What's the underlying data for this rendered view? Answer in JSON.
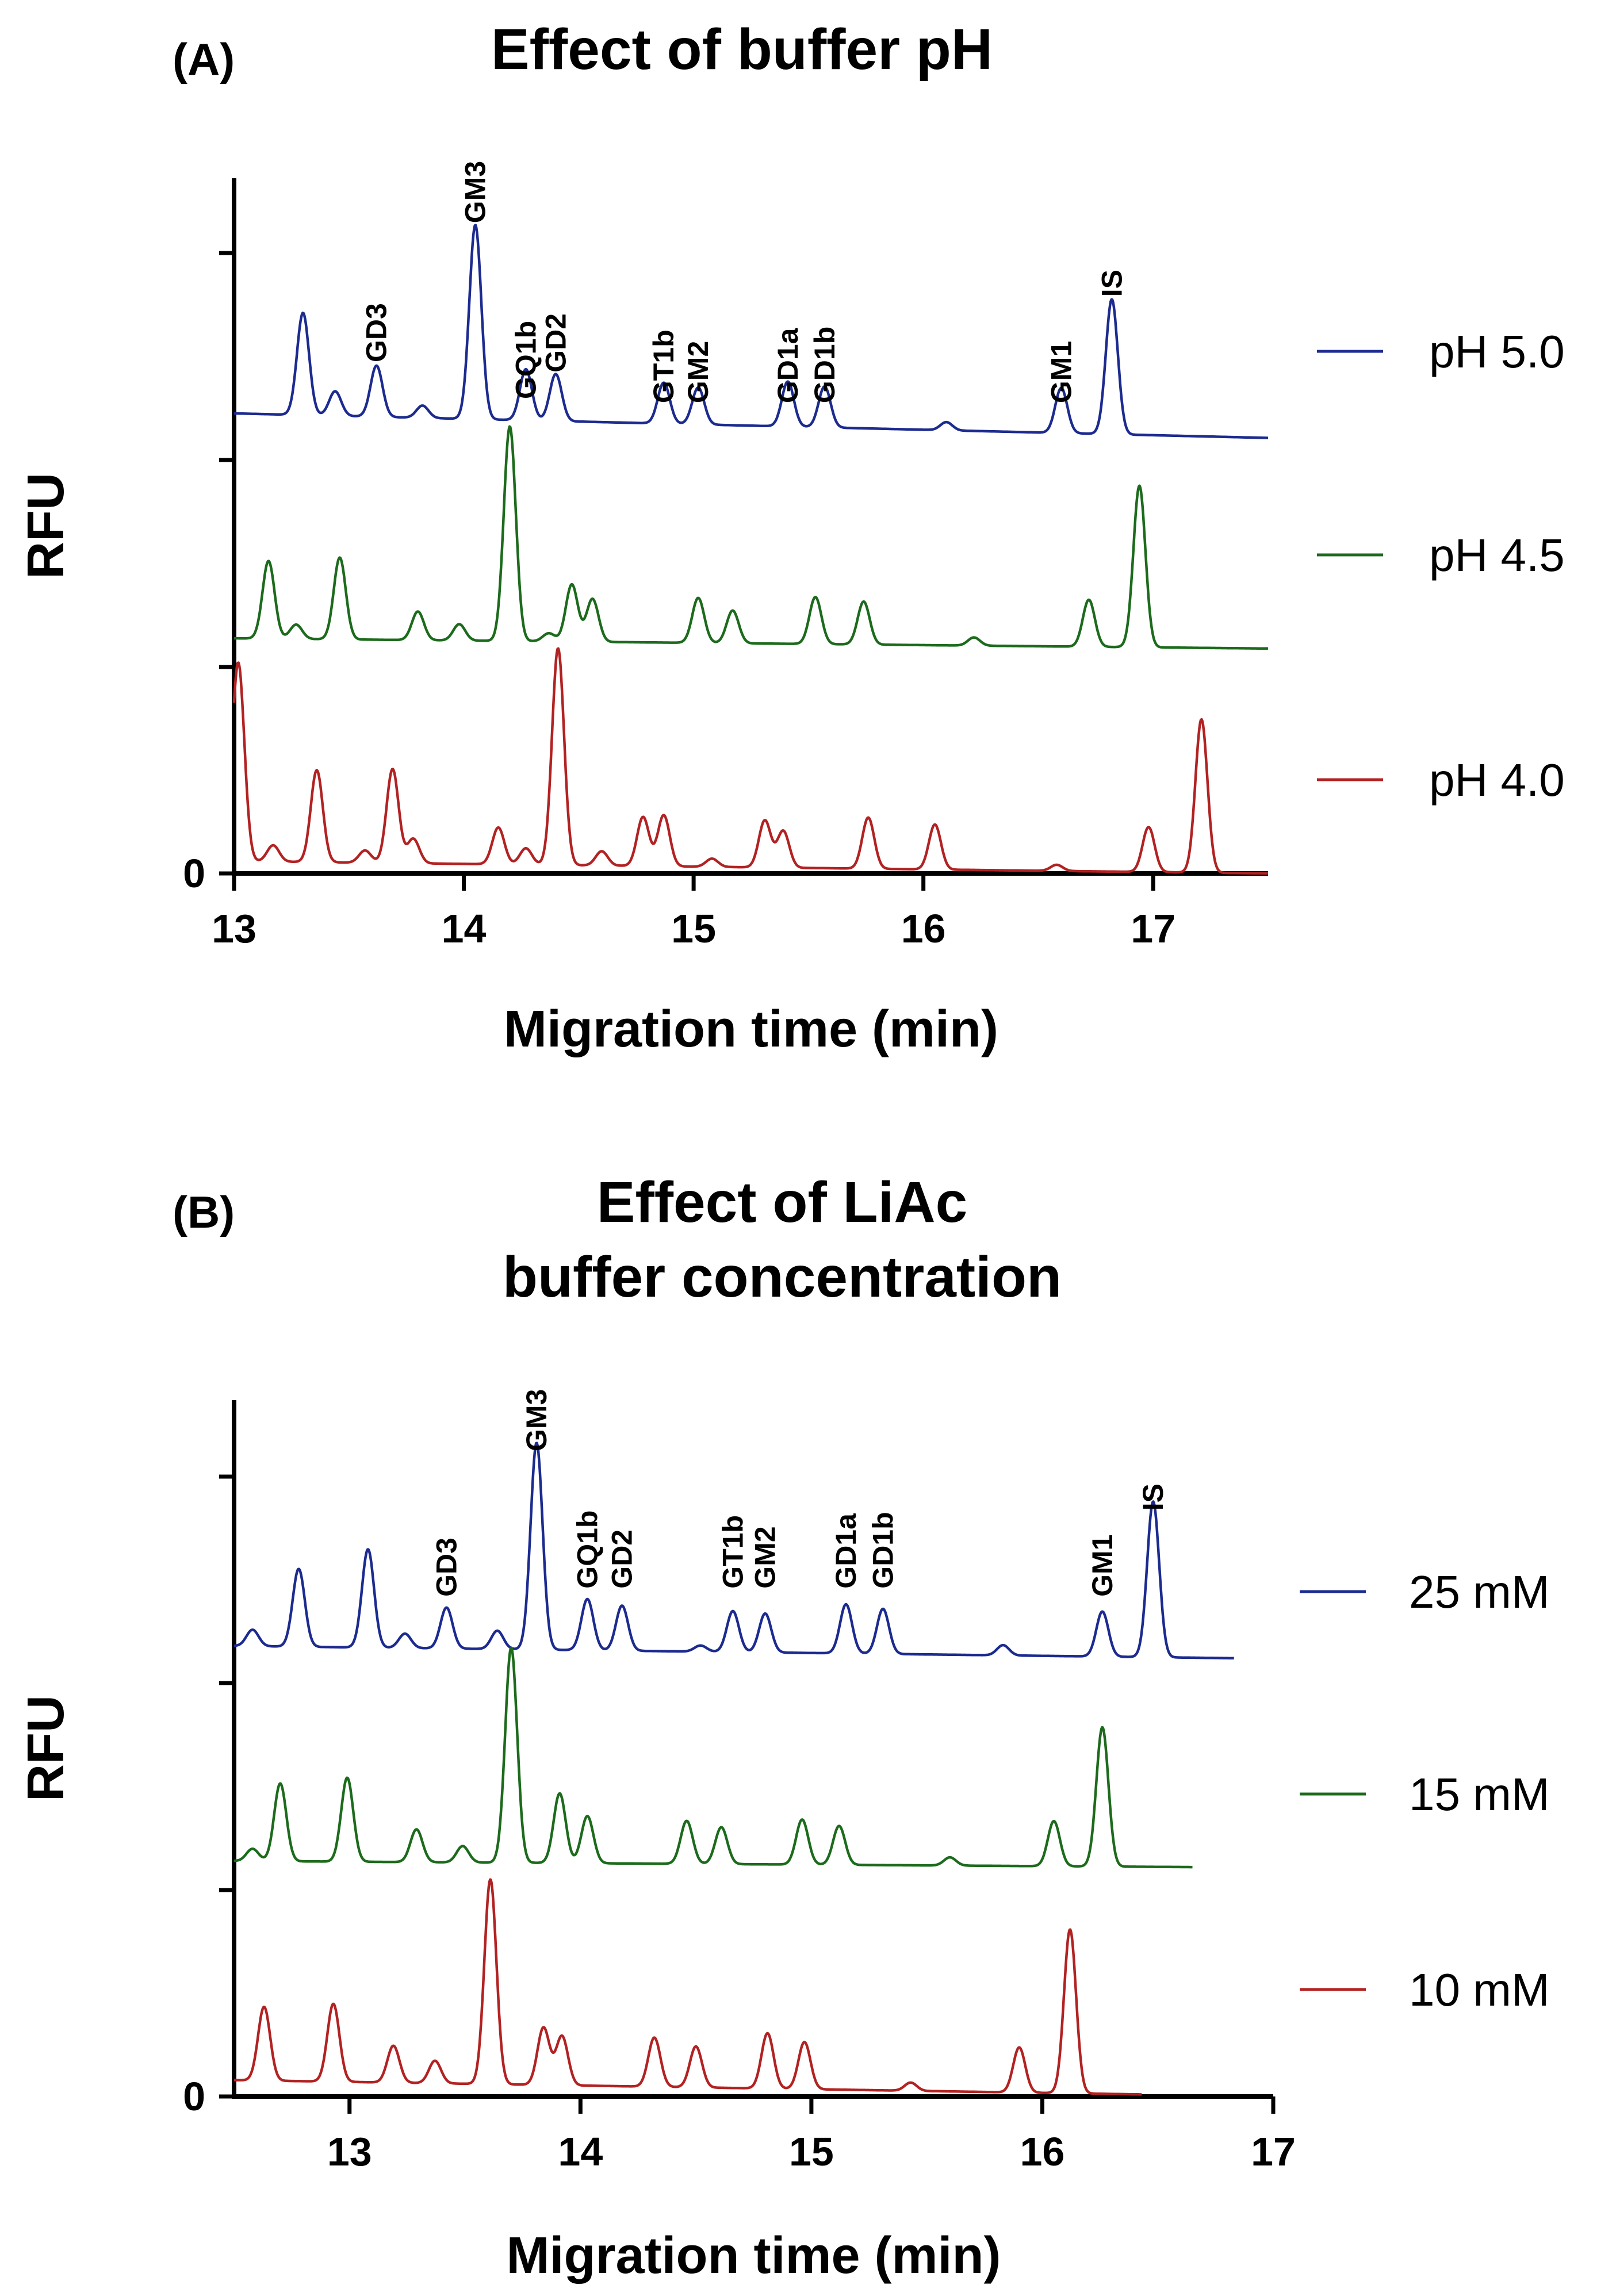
{
  "chart_data": [
    {
      "type": "line",
      "panel_label": "(A)",
      "title": "Effect of buffer pH",
      "xlabel": "Migration time (min)",
      "ylabel": "RFU",
      "xlim": [
        13,
        17.5
      ],
      "ylim": [
        0,
        3.4
      ],
      "xticks": [
        13,
        14,
        15,
        16,
        17
      ],
      "ytick_label": "0",
      "grid": false,
      "legend_position": "right",
      "peak_labels": [
        {
          "text": "GD3",
          "x": 13.62,
          "y": 2.5
        },
        {
          "text": "GM3",
          "x": 14.05,
          "y": 3.18
        },
        {
          "text": "GQ1b",
          "x": 14.27,
          "y": 2.32
        },
        {
          "text": "GD2",
          "x": 14.4,
          "y": 2.45
        },
        {
          "text": "GT1b",
          "x": 14.87,
          "y": 2.3
        },
        {
          "text": "GM2",
          "x": 15.02,
          "y": 2.3
        },
        {
          "text": "GD1a",
          "x": 15.41,
          "y": 2.3
        },
        {
          "text": "GD1b",
          "x": 15.57,
          "y": 2.3
        },
        {
          "text": "GM1",
          "x": 16.6,
          "y": 2.3
        },
        {
          "text": "IS",
          "x": 16.82,
          "y": 2.82
        }
      ],
      "series": [
        {
          "name": "pH 5.0",
          "color": "#1c2b8f",
          "x_start": 13.0,
          "x_end": 17.5,
          "base_start": 2.25,
          "base_end": 2.13,
          "peaks": [
            [
              13.3,
              0.5
            ],
            [
              13.44,
              0.12
            ],
            [
              13.62,
              0.25
            ],
            [
              13.82,
              0.06
            ],
            [
              14.05,
              0.95
            ],
            [
              14.27,
              0.25
            ],
            [
              14.4,
              0.23
            ],
            [
              14.87,
              0.2
            ],
            [
              15.02,
              0.18
            ],
            [
              15.41,
              0.22
            ],
            [
              15.57,
              0.2
            ],
            [
              16.1,
              0.04
            ],
            [
              16.6,
              0.22
            ],
            [
              16.82,
              0.66
            ]
          ]
        },
        {
          "name": "pH 4.5",
          "color": "#1c6b1c",
          "x_start": 13.0,
          "x_end": 17.5,
          "base_start": 1.15,
          "base_end": 1.1,
          "peaks": [
            [
              13.15,
              0.38
            ],
            [
              13.27,
              0.07
            ],
            [
              13.46,
              0.4
            ],
            [
              13.8,
              0.14
            ],
            [
              13.98,
              0.08
            ],
            [
              14.2,
              1.05
            ],
            [
              14.37,
              0.04
            ],
            [
              14.47,
              0.28
            ],
            [
              14.56,
              0.21
            ],
            [
              15.02,
              0.22
            ],
            [
              15.17,
              0.16
            ],
            [
              15.53,
              0.23
            ],
            [
              15.74,
              0.21
            ],
            [
              16.22,
              0.04
            ],
            [
              16.72,
              0.23
            ],
            [
              16.94,
              0.79
            ]
          ]
        },
        {
          "name": "pH 4.0",
          "color": "#b22222",
          "x_start": 13.0,
          "x_end": 17.5,
          "base_start": 0.06,
          "base_end": 0.0,
          "peaks": [
            [
              13.0,
              0.12
            ],
            [
              13.02,
              0.88
            ],
            [
              13.17,
              0.08
            ],
            [
              13.36,
              0.45
            ],
            [
              13.57,
              0.06
            ],
            [
              13.69,
              0.46
            ],
            [
              13.78,
              0.12
            ],
            [
              14.15,
              0.18
            ],
            [
              14.27,
              0.08
            ],
            [
              14.41,
              1.06
            ],
            [
              14.6,
              0.07
            ],
            [
              14.78,
              0.24
            ],
            [
              14.87,
              0.25
            ],
            [
              15.08,
              0.04
            ],
            [
              15.31,
              0.23
            ],
            [
              15.39,
              0.18
            ],
            [
              15.76,
              0.25
            ],
            [
              16.05,
              0.22
            ],
            [
              16.58,
              0.03
            ],
            [
              16.98,
              0.22
            ],
            [
              17.21,
              0.75
            ]
          ]
        }
      ]
    },
    {
      "type": "line",
      "panel_label": "(B)",
      "title": "Effect of LiAc\nbuffer concentration",
      "xlabel": "Migration time (min)",
      "ylabel": "RFU",
      "xlim": [
        12.5,
        17
      ],
      "ylim": [
        0,
        3.4
      ],
      "xticks": [
        13,
        14,
        15,
        16,
        17
      ],
      "ytick_label": "0",
      "grid": false,
      "legend_position": "right",
      "peak_labels": [
        {
          "text": "GD3",
          "x": 13.42,
          "y": 2.44
        },
        {
          "text": "GM3",
          "x": 13.81,
          "y": 3.15
        },
        {
          "text": "GQ1b",
          "x": 14.03,
          "y": 2.48
        },
        {
          "text": "GD2",
          "x": 14.18,
          "y": 2.48
        },
        {
          "text": "GT1b",
          "x": 14.66,
          "y": 2.48
        },
        {
          "text": "GM2",
          "x": 14.8,
          "y": 2.48
        },
        {
          "text": "GD1a",
          "x": 15.15,
          "y": 2.48
        },
        {
          "text": "GD1b",
          "x": 15.31,
          "y": 2.48
        },
        {
          "text": "GM1",
          "x": 16.26,
          "y": 2.44
        },
        {
          "text": "IS",
          "x": 16.48,
          "y": 2.86
        }
      ],
      "series": [
        {
          "name": "25 mM",
          "color": "#1c2b8f",
          "x_start": 12.5,
          "x_end": 16.83,
          "base_start": 2.2,
          "base_end": 2.14,
          "peaks": [
            [
              12.58,
              0.08
            ],
            [
              12.78,
              0.38
            ],
            [
              13.08,
              0.48
            ],
            [
              13.24,
              0.07
            ],
            [
              13.42,
              0.2
            ],
            [
              13.64,
              0.09
            ],
            [
              13.81,
              1.01
            ],
            [
              14.03,
              0.25
            ],
            [
              14.18,
              0.22
            ],
            [
              14.52,
              0.03
            ],
            [
              14.66,
              0.2
            ],
            [
              14.8,
              0.19
            ],
            [
              15.15,
              0.24
            ],
            [
              15.31,
              0.22
            ],
            [
              15.83,
              0.05
            ],
            [
              16.26,
              0.22
            ],
            [
              16.48,
              0.76
            ]
          ]
        },
        {
          "name": "15 mM",
          "color": "#1c6b1c",
          "x_start": 12.5,
          "x_end": 16.65,
          "base_start": 1.15,
          "base_end": 1.12,
          "peaks": [
            [
              12.58,
              0.06
            ],
            [
              12.7,
              0.38
            ],
            [
              12.99,
              0.41
            ],
            [
              13.29,
              0.16
            ],
            [
              13.49,
              0.08
            ],
            [
              13.7,
              1.05
            ],
            [
              13.91,
              0.34
            ],
            [
              14.03,
              0.23
            ],
            [
              14.46,
              0.21
            ],
            [
              14.61,
              0.18
            ],
            [
              14.96,
              0.22
            ],
            [
              15.12,
              0.19
            ],
            [
              15.6,
              0.04
            ],
            [
              16.05,
              0.22
            ],
            [
              16.26,
              0.68
            ]
          ]
        },
        {
          "name": "10 mM",
          "color": "#b22222",
          "x_start": 12.5,
          "x_end": 16.43,
          "base_start": 0.08,
          "base_end": 0.01,
          "peaks": [
            [
              12.63,
              0.36
            ],
            [
              12.93,
              0.38
            ],
            [
              13.19,
              0.18
            ],
            [
              13.37,
              0.11
            ],
            [
              13.61,
              1.0
            ],
            [
              13.84,
              0.28
            ],
            [
              13.92,
              0.24
            ],
            [
              14.32,
              0.24
            ],
            [
              14.5,
              0.2
            ],
            [
              14.81,
              0.27
            ],
            [
              14.97,
              0.23
            ],
            [
              15.43,
              0.04
            ],
            [
              15.9,
              0.22
            ],
            [
              16.12,
              0.8
            ]
          ]
        }
      ]
    }
  ]
}
